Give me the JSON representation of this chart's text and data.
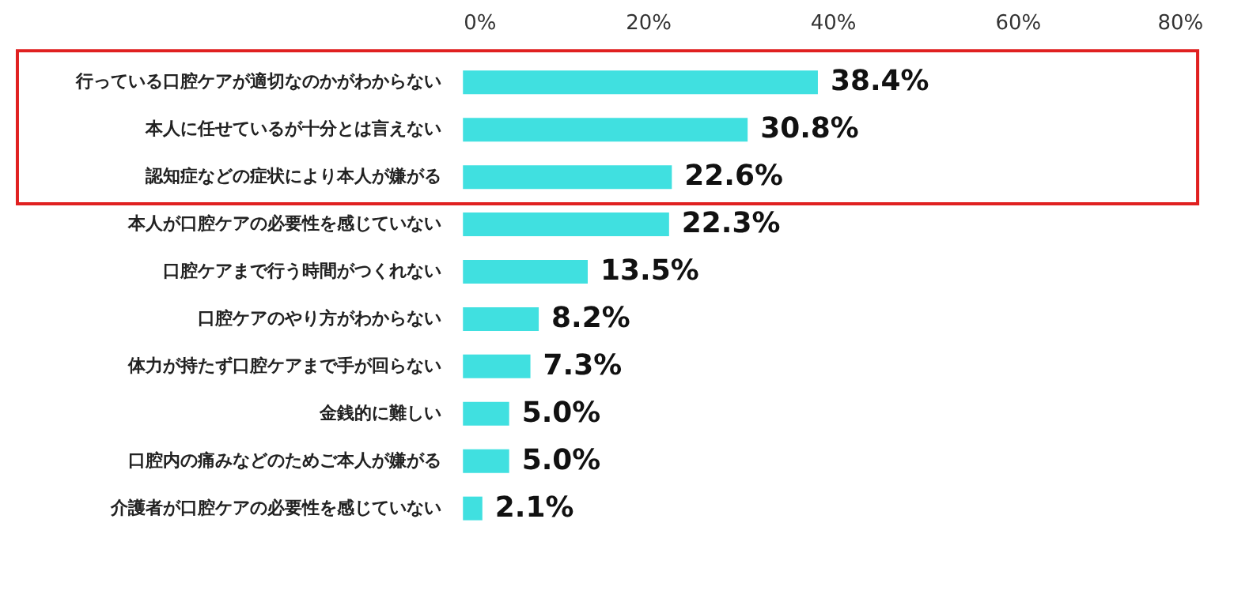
{
  "chart_data": {
    "type": "bar",
    "orientation": "horizontal",
    "categories": [
      "行っている口腔ケアが適切なのかがわからない",
      "本人に任せているが十分とは言えない",
      "認知症などの症状により本人が嫌がる",
      "本人が口腔ケアの必要性を感じていない",
      "口腔ケアまで行う時間がつくれない",
      "口腔ケアのやり方がわからない",
      "体力が持たず口腔ケアまで手が回らない",
      "金銭的に難しい",
      "口腔内の痛みなどのためご本人が嫌がる",
      "介護者が口腔ケアの必要性を感じていない"
    ],
    "values": [
      38.4,
      30.8,
      22.6,
      22.3,
      13.5,
      8.2,
      7.3,
      5.0,
      5.0,
      2.1
    ],
    "value_labels": [
      "38.4%",
      "30.8%",
      "22.6%",
      "22.3%",
      "13.5%",
      "8.2%",
      "7.3%",
      "5.0%",
      "5.0%",
      "2.1%"
    ],
    "color": "#40e0e0",
    "xlim": [
      0,
      80
    ],
    "xticks": [
      {
        "value": 0,
        "label": "0%"
      },
      {
        "value": 20,
        "label": "20%"
      },
      {
        "value": 40,
        "label": "40%"
      },
      {
        "value": 60,
        "label": "60%"
      },
      {
        "value": 80,
        "label": "80%"
      }
    ],
    "grid": false
  }
}
